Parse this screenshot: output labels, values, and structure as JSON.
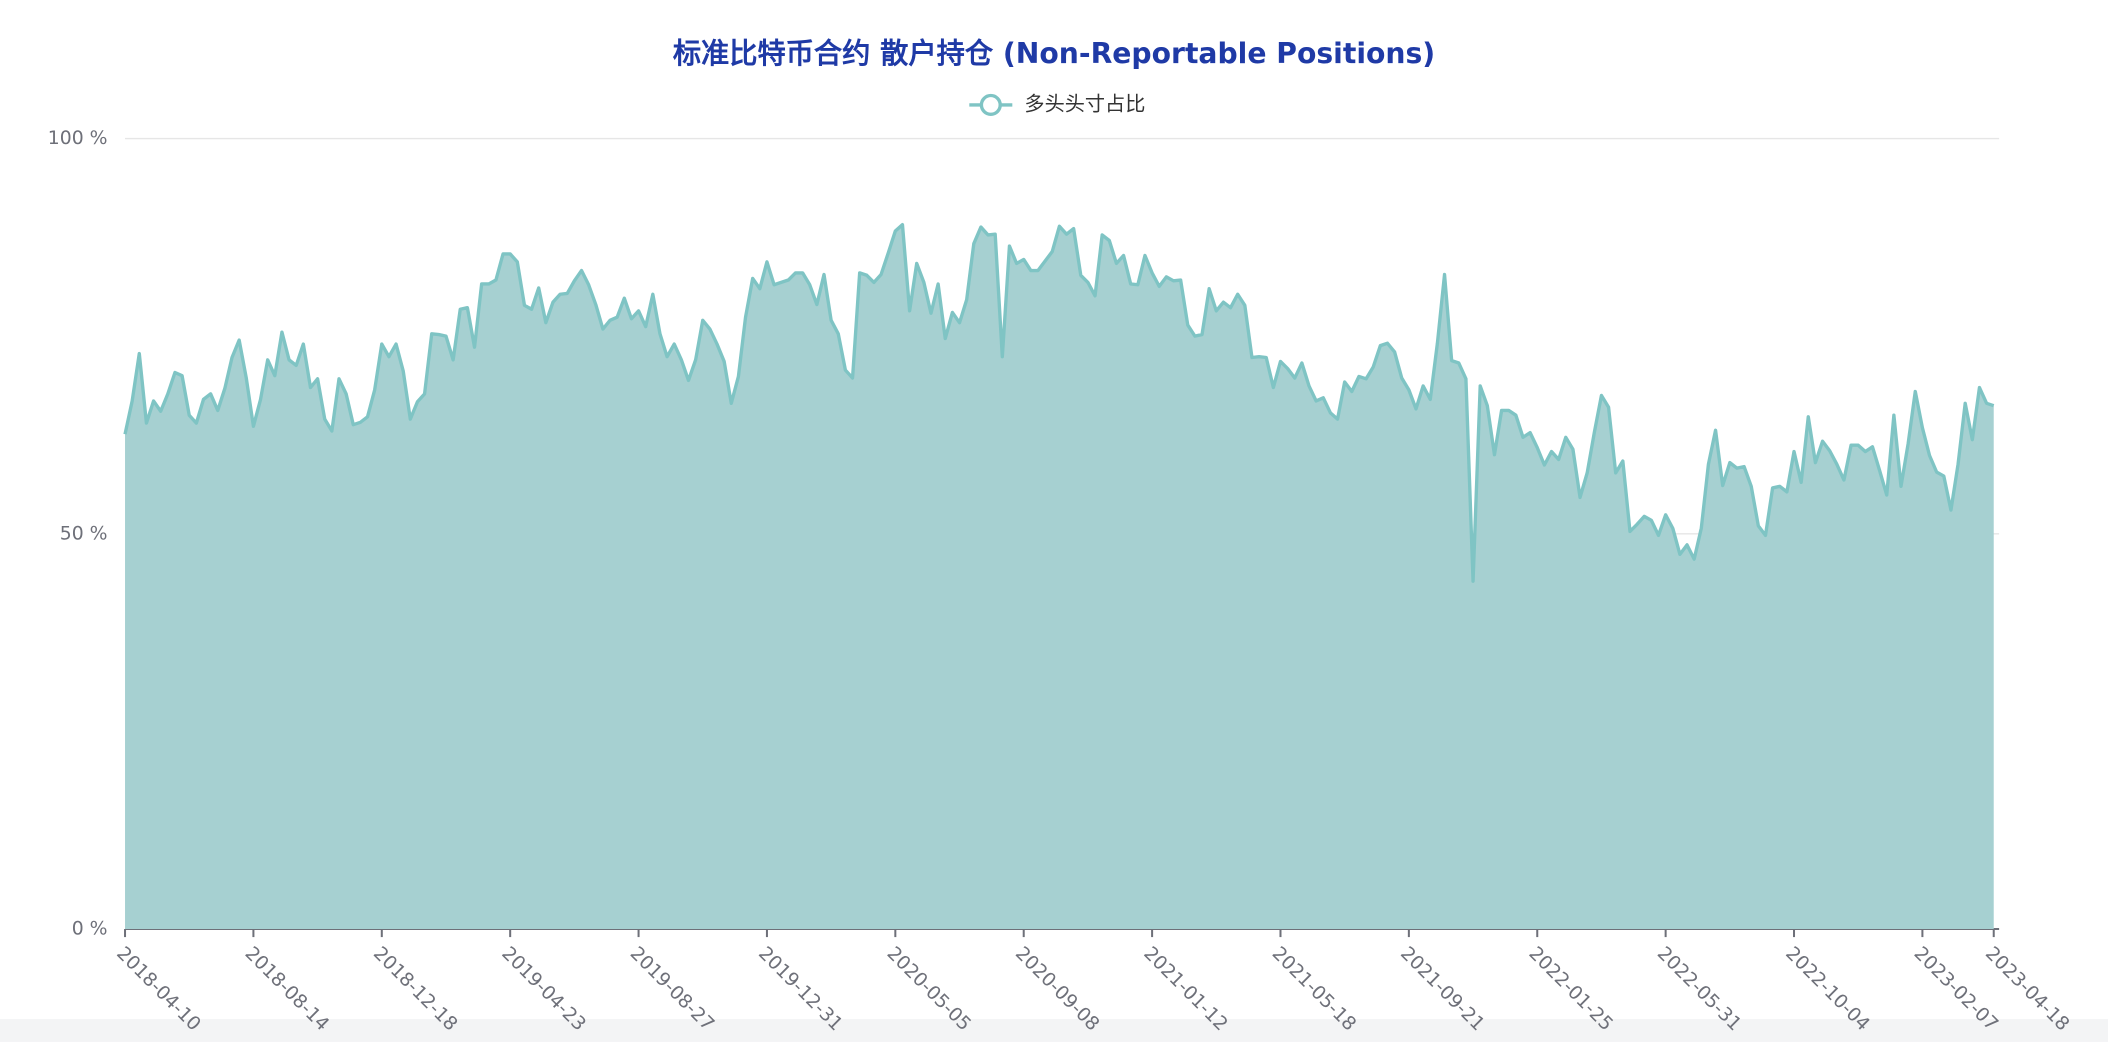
{
  "chart_data": {
    "type": "area",
    "title": "标准比特币合约 散户持仓 (Non-Reportable Positions)",
    "legend_position": "top",
    "ylim": [
      0,
      100
    ],
    "yticks": [
      {
        "value": 0,
        "label": "0 %"
      },
      {
        "value": 50,
        "label": "50 %"
      },
      {
        "value": 100,
        "label": "100 %"
      }
    ],
    "grid": true,
    "categories": [
      "2018-04-10",
      null,
      null,
      null,
      null,
      null,
      null,
      null,
      null,
      null,
      null,
      null,
      null,
      null,
      null,
      null,
      null,
      null,
      "2018-08-14",
      null,
      null,
      null,
      null,
      null,
      null,
      null,
      null,
      null,
      null,
      null,
      null,
      null,
      null,
      null,
      null,
      null,
      "2018-12-18",
      null,
      null,
      null,
      null,
      null,
      null,
      null,
      null,
      null,
      null,
      null,
      null,
      null,
      null,
      null,
      null,
      null,
      "2019-04-23",
      null,
      null,
      null,
      null,
      null,
      null,
      null,
      null,
      null,
      null,
      null,
      null,
      null,
      null,
      null,
      null,
      null,
      "2019-08-27",
      null,
      null,
      null,
      null,
      null,
      null,
      null,
      null,
      null,
      null,
      null,
      null,
      null,
      null,
      null,
      null,
      null,
      "2019-12-31",
      null,
      null,
      null,
      null,
      null,
      null,
      null,
      null,
      null,
      null,
      null,
      null,
      null,
      null,
      null,
      null,
      null,
      "2020-05-05",
      null,
      null,
      null,
      null,
      null,
      null,
      null,
      null,
      null,
      null,
      null,
      null,
      null,
      null,
      null,
      null,
      null,
      "2020-09-08",
      null,
      null,
      null,
      null,
      null,
      null,
      null,
      null,
      null,
      null,
      null,
      null,
      null,
      null,
      null,
      null,
      null,
      "2021-01-12",
      null,
      null,
      null,
      null,
      null,
      null,
      null,
      null,
      null,
      null,
      null,
      null,
      null,
      null,
      null,
      null,
      null,
      "2021-05-18",
      null,
      null,
      null,
      null,
      null,
      null,
      null,
      null,
      null,
      null,
      null,
      null,
      null,
      null,
      null,
      null,
      null,
      "2021-09-21",
      null,
      null,
      null,
      null,
      null,
      null,
      null,
      null,
      null,
      null,
      null,
      null,
      null,
      null,
      null,
      null,
      null,
      "2022-01-25",
      null,
      null,
      null,
      null,
      null,
      null,
      null,
      null,
      null,
      null,
      null,
      null,
      null,
      null,
      null,
      null,
      null,
      "2022-05-31",
      null,
      null,
      null,
      null,
      null,
      null,
      null,
      null,
      null,
      null,
      null,
      null,
      null,
      null,
      null,
      null,
      null,
      "2022-10-04",
      null,
      null,
      null,
      null,
      null,
      null,
      null,
      null,
      null,
      null,
      null,
      null,
      null,
      null,
      null,
      null,
      null,
      "2023-02-07",
      null,
      null,
      null,
      null,
      null,
      null,
      null,
      null,
      null,
      "2023-04-18"
    ],
    "series": [
      {
        "name": "多头头寸占比",
        "color": "#7fc4c4",
        "fill": "#a6d0d1",
        "values": [
          62.6,
          66.8,
          72.8,
          64,
          66.8,
          65.5,
          67.7,
          70.4,
          70,
          65,
          64,
          67,
          67.7,
          65.6,
          68.4,
          72.3,
          74.5,
          69.7,
          63.6,
          67,
          72,
          70,
          75.5,
          72,
          71.3,
          74,
          68.5,
          69.6,
          64.5,
          63,
          69.6,
          67.7,
          63.8,
          64.1,
          64.8,
          68.2,
          74,
          72.4,
          74,
          70.6,
          64.5,
          66.7,
          67.7,
          75.3,
          75.2,
          75,
          72,
          78.4,
          78.6,
          73.6,
          81.6,
          81.6,
          82.1,
          85.4,
          85.4,
          84.4,
          78.9,
          78.4,
          81.1,
          76.7,
          79.3,
          80.3,
          80.4,
          82,
          83.3,
          81.5,
          79,
          75.9,
          77,
          77.4,
          79.8,
          77.2,
          78.2,
          76.2,
          80.3,
          75.3,
          72.4,
          74,
          72,
          69.4,
          72,
          77,
          75.9,
          74,
          71.8,
          66.5,
          69.9,
          77.4,
          82.3,
          81,
          84.4,
          81.5,
          81.8,
          82.1,
          83,
          83,
          81.5,
          79,
          82.8,
          77,
          75.3,
          70.7,
          69.7,
          83,
          82.7,
          81.8,
          82.8,
          85.5,
          88.3,
          89.1,
          78.2,
          84.2,
          81.8,
          77.9,
          81.6,
          74.7,
          78,
          76.7,
          79.6,
          86.7,
          88.8,
          87.8,
          87.9,
          72.4,
          86.4,
          84.2,
          84.7,
          83.3,
          83.3,
          84.5,
          85.7,
          88.9,
          87.9,
          88.6,
          82.7,
          81.8,
          80.1,
          87.8,
          87.1,
          84.2,
          85.2,
          81.6,
          81.5,
          85.2,
          83,
          81.3,
          82.5,
          82,
          82.1,
          76.4,
          75,
          75.2,
          81,
          78.2,
          79.3,
          78.6,
          80.3,
          78.9,
          72.3,
          72.4,
          72.3,
          68.5,
          71.8,
          70.9,
          69.7,
          71.6,
          68.7,
          66.8,
          67.2,
          65.3,
          64.5,
          69.2,
          68,
          69.9,
          69.6,
          71.1,
          73.8,
          74.1,
          73,
          69.7,
          68.2,
          65.8,
          68.7,
          67,
          74.1,
          82.8,
          71.9,
          71.6,
          69.6,
          44,
          68.7,
          66.2,
          60,
          65.6,
          65.6,
          65,
          62.2,
          62.8,
          60.9,
          58.7,
          60.4,
          59.4,
          62.2,
          60.7,
          54.6,
          57.7,
          62.8,
          67.5,
          66,
          57.7,
          59.2,
          50.3,
          51.2,
          52.2,
          51.7,
          49.8,
          52.4,
          50.7,
          47.4,
          48.6,
          46.8,
          50.7,
          58.8,
          63.1,
          56.1,
          59,
          58.3,
          58.5,
          56,
          51,
          49.8,
          55.8,
          56,
          55.3,
          60.4,
          56.5,
          64.8,
          59,
          61.7,
          60.5,
          58.8,
          56.8,
          61.2,
          61.2,
          60.4,
          61,
          58,
          54.9,
          65,
          56,
          61.4,
          68,
          63.4,
          59.9,
          57.8,
          57.3,
          53,
          58.8,
          66.5,
          61.9,
          68.5,
          66.5,
          66.2
        ]
      }
    ]
  }
}
